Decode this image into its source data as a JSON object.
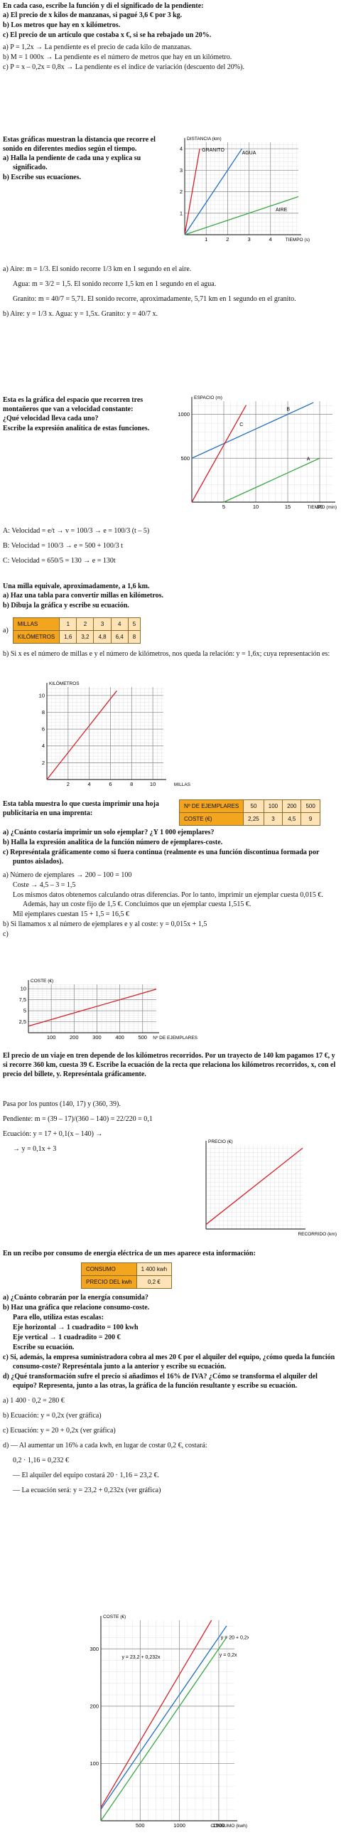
{
  "ej1": {
    "enunciado": "En cada caso, escribe la función y di el significado de la pendiente:",
    "apartados": [
      "a) El precio de x kilos de manzanas, si pagué 3,6 € por 3 kg.",
      "b) Los metros que hay en x kilómetros.",
      "c) El precio de un artículo que costaba x €, si se ha rebajado un 20%."
    ],
    "respuestas": [
      "a) P = 1,2x  →  La pendiente es el precio de cada kilo de manzanas.",
      "b) M = 1 000x  →  La pendiente es el número de metros que hay en un kilómetro.",
      "c) P = x – 0,2x = 0,8x  →  La pendiente es el índice de variación (descuento del 20%)."
    ]
  },
  "ej2": {
    "enunciado": "Estas gráficas muestran la distancia que recorre el sonido en diferentes medios según el tiempo.",
    "apartados": [
      "a) Halla la pendiente de cada una y explica su significado.",
      "b) Escribe sus ecuaciones."
    ],
    "grafica": {
      "type": "line",
      "ylabel": "DISTANCIA (km)",
      "xlabel": "TIEMPO (s)",
      "xlim": [
        0,
        5.3
      ],
      "ylim": [
        0,
        4.3
      ],
      "xticks": [
        1,
        2,
        3,
        4
      ],
      "yticks": [
        1,
        2,
        3,
        4
      ],
      "grid": true,
      "series": [
        {
          "name": "GRANITO",
          "color": "#d62027",
          "x": [
            0,
            0.7
          ],
          "y": [
            0,
            4
          ]
        },
        {
          "name": "AGUA",
          "color": "#1f6fc0",
          "x": [
            0,
            2.67
          ],
          "y": [
            0,
            4
          ]
        },
        {
          "name": "AIRE",
          "color": "#3aa845",
          "x": [
            0,
            5.3
          ],
          "y": [
            0,
            1.77
          ]
        }
      ]
    },
    "respuestas": [
      "a) Aire: m = 1/3. El sonido recorre 1/3 km en 1 segundo en el aire.",
      "Agua: m = 3/2 = 1,5. El sonido recorre 1,5 km en 1 segundo en el agua.",
      "Granito: m = 40/7 = 5,71. El sonido recorre, aproximadamente, 5,71 km en 1 segundo en el granito.",
      "b) Aire: y = 1/3 x.  Agua: y = 1,5x.  Granito: y = 40/7 x."
    ]
  },
  "ej3": {
    "enunciado": "Esta es la gráfica del espacio que recorren tres montañeros que van a velocidad constante:",
    "apartados": [
      "¿Qué velocidad lleva cada uno?",
      "Escribe la expresión analítica de estas funciones."
    ],
    "grafica": {
      "type": "line",
      "ylabel": "ESPACIO (m)",
      "xlabel": "TIEMPO (min)",
      "xlim": [
        0,
        22
      ],
      "ylim": [
        0,
        1150
      ],
      "xticks": [
        5,
        10,
        15,
        20
      ],
      "yticks": [
        500,
        1000
      ],
      "grid": true,
      "series": [
        {
          "name": "A",
          "color": "#3aa845",
          "x": [
            5,
            20
          ],
          "y": [
            0,
            500
          ]
        },
        {
          "name": "B",
          "color": "#1f6fc0",
          "x": [
            0,
            19
          ],
          "y": [
            500,
            1133.3
          ]
        },
        {
          "name": "C",
          "color": "#d62027",
          "x": [
            0,
            8.5
          ],
          "y": [
            0,
            1105
          ]
        }
      ]
    },
    "respuestas": [
      "A: Velocidad = e/t → v = 100/3 → e = 100/3 (t – 5)",
      "B: Velocidad = 100/3 → e = 500 + 100/3 t",
      "C: Velocidad = 650/5 = 130 → e = 130t"
    ]
  },
  "ej4": {
    "enunciado": "Una milla equivale, aproximadamente, a 1,6 km.",
    "apartados": [
      "a) Haz una tabla para convertir millas en kilómetros.",
      "b) Dibuja la gráfica y escribe su ecuación."
    ],
    "tabla_rotulo": "a)",
    "tabla": [
      [
        "MILLAS",
        "1",
        "2",
        "3",
        "4",
        "5"
      ],
      [
        "KILÓMETROS",
        "1,6",
        "3,2",
        "4,8",
        "6,4",
        "8"
      ]
    ],
    "respuesta": "b) Si x es el número de millas e y el número de kilómetros, nos queda la relación: y = 1,6x; cuya representación es:",
    "grafica": {
      "type": "line",
      "ylabel": "KILÓMETROS",
      "xlabel": "MILLAS",
      "xlim": [
        0,
        11
      ],
      "ylim": [
        0,
        11
      ],
      "xticks": [
        2,
        4,
        6,
        8,
        10
      ],
      "yticks": [
        2,
        4,
        6,
        8,
        10
      ],
      "grid": true,
      "series": [
        {
          "color": "#d62027",
          "x": [
            0,
            6.6
          ],
          "y": [
            0,
            10.56
          ]
        }
      ]
    }
  },
  "ej5": {
    "enunciado": "Esta tabla muestra lo que cuesta imprimir una hoja publicitaria en una imprenta:",
    "tabla": [
      [
        "Nº DE EJEMPLARES",
        "50",
        "100",
        "200",
        "500"
      ],
      [
        "COSTE (€)",
        "2,25",
        "3",
        "4,5",
        "9"
      ]
    ],
    "apartados": [
      "a) ¿Cuánto costaría imprimir un solo ejemplar? ¿Y 1 000 ejemplares?",
      "b) Halla la expresión analítica de la función número de ejemplares-coste.",
      "c) Represéntala gráficamente como si fuera continua (realmente es una función discontinua formada por puntos aislados)."
    ],
    "respuestas": [
      "a) Número de ejemplares → 200 – 100 = 100",
      "Coste → 4,5 – 3 = 1,5",
      "Los mismos datos obtenemos calculando otras diferencias. Por lo tanto, imprimir un ejemplar cuesta 0,015 €. Además, hay un coste fijo de 1,5 €. Concluimos que un ejemplar cuesta 1,515 €.",
      "Mil ejemplares cuestan 15 + 1,5 = 16,5 €",
      "b) Si llamamos x al número de ejemplares e y al coste: y = 0,015x + 1,5",
      "c)"
    ],
    "grafica": {
      "type": "line",
      "ylabel": "COSTE (€)",
      "xlabel": "Nº DE EJEMPLARES",
      "xlim": [
        0,
        560
      ],
      "ylim": [
        0,
        11
      ],
      "xticks": [
        100,
        200,
        300,
        400,
        500
      ],
      "yticks": [
        {
          "value": 2.5,
          "label": "2,5"
        },
        5,
        {
          "value": 7.5,
          "label": "7,5"
        },
        10
      ],
      "grid": true,
      "series": [
        {
          "color": "#d62027",
          "x": [
            0,
            560
          ],
          "y": [
            1.5,
            9.9
          ]
        }
      ]
    }
  },
  "ej6": {
    "enunciado": "El precio de un viaje en tren depende de los kilómetros recorridos. Por un trayecto de 140 km pagamos 17 €, y si recorre 360 km, cuesta 39 €. Escribe la ecuación de la recta que relaciona los kilómetros recorridos, x, con el precio del billete, y. Represéntala gráficamente.",
    "respuestas": [
      "Pasa por los puntos (140, 17) y (360, 39).",
      "Pendiente: m = (39 – 17)/(360 – 140) = 22/220 = 0,1",
      "Ecuación: y = 17 + 0,1(x – 140) →",
      "→ y = 0,1x + 3"
    ],
    "grafica": {
      "type": "line",
      "ylabel": "PRECIO (€)",
      "xlabel": "RECORRIDO (km)",
      "xlim": [
        0,
        500
      ],
      "ylim": [
        0,
        55
      ],
      "grid": true,
      "series": [
        {
          "color": "#d62027",
          "x": [
            0,
            500
          ],
          "y": [
            3,
            53
          ]
        }
      ]
    }
  },
  "ej7": {
    "enunciado": "En un recibo por consumo de energía eléctrica de un mes aparece esta información:",
    "tabla": [
      [
        "CONSUMO",
        "1 400 kwh"
      ],
      [
        "PRECIO DEL kwh",
        "0,2 €"
      ]
    ],
    "apartados": [
      "a) ¿Cuánto cobrarán por la energía consumida?",
      "b) Haz una gráfica que relacione consumo-coste.",
      "Para ello, utiliza estas escalas:",
      "Eje horizontal → 1 cuadradito = 100 kwh",
      "Eje vertical → 1 cuadradito = 200 €",
      "Escribe su ecuación.",
      "c) Si, además, la empresa suministradora cobra al mes 20 € por el alquiler del equipo, ¿cómo queda la función consumo-coste? Represéntala junto a la anterior y escribe su ecuación.",
      "d) ¿Qué transformación sufre el precio si añadimos el 16% de IVA? ¿Cómo se transforma el alquiler del equipo? Representa, junto a las otras, la gráfica de la función resultante y escribe su ecuación."
    ],
    "respuestas": [
      "a) 1 400 · 0,2 = 280 €",
      "b) Ecuación: y = 0,2x (ver gráfica)",
      "c) Ecuación: y = 20 + 0,2x (ver gráfica)",
      "d) — Al aumentar un 16% a cada kwh, en lugar de costar 0,2 €, costará:",
      "0,2 · 1,16 = 0,232 €",
      "— El alquiler del equipo costará 20 · 1,16 = 23,2 €.",
      "— La ecuación será: y = 23,2 + 0,232x (ver gráfica)"
    ],
    "grafica": {
      "type": "line",
      "ylabel": "COSTE (€)",
      "xlabel": "CONSUMO (kwh)",
      "xlim": [
        0,
        1700
      ],
      "ylim": [
        0,
        350
      ],
      "xticks": [
        500,
        1000,
        1500
      ],
      "yticks": [
        100,
        200,
        300
      ],
      "grid": true,
      "series": [
        {
          "name": "y = 0,2x",
          "color": "#3aa845",
          "x": [
            0,
            1600
          ],
          "y": [
            0,
            320
          ]
        },
        {
          "name": "y = 20 + 0,2x",
          "color": "#1f6fc0",
          "x": [
            0,
            1600
          ],
          "y": [
            20,
            340
          ]
        },
        {
          "name": "y = 23,2 + 0,232x",
          "color": "#d62027",
          "x": [
            0,
            1408
          ],
          "y": [
            23.2,
            349.9
          ]
        }
      ]
    }
  }
}
